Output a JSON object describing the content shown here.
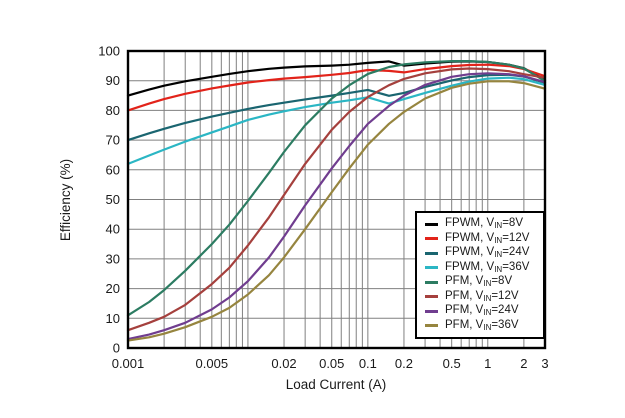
{
  "chart_data": {
    "type": "line",
    "title": "",
    "xlabel": "Load Current (A)",
    "ylabel": "Efficiency (%)",
    "x_scale": "log",
    "xlim": [
      0.001,
      3
    ],
    "ylim": [
      0,
      100
    ],
    "grid": "major and minor gridlines on, gray",
    "legend_position": "inside lower right",
    "frame_color": "#000000",
    "grid_color": "#808080",
    "x_ticks": [
      {
        "v": 0.001,
        "label": "0.001"
      },
      {
        "v": 0.005,
        "label": "0.005"
      },
      {
        "v": 0.02,
        "label": "0.02"
      },
      {
        "v": 0.05,
        "label": "0.05"
      },
      {
        "v": 0.1,
        "label": "0.1"
      },
      {
        "v": 0.2,
        "label": "0.2"
      },
      {
        "v": 0.5,
        "label": "0.5"
      },
      {
        "v": 1,
        "label": "1"
      },
      {
        "v": 2,
        "label": "2"
      },
      {
        "v": 3,
        "label": "3"
      }
    ],
    "y_ticks": [
      {
        "v": 0,
        "label": "0"
      },
      {
        "v": 10,
        "label": "10"
      },
      {
        "v": 20,
        "label": "20"
      },
      {
        "v": 30,
        "label": "30"
      },
      {
        "v": 40,
        "label": "40"
      },
      {
        "v": 50,
        "label": "50"
      },
      {
        "v": 60,
        "label": "60"
      },
      {
        "v": 70,
        "label": "70"
      },
      {
        "v": 80,
        "label": "80"
      },
      {
        "v": 90,
        "label": "90"
      },
      {
        "v": 100,
        "label": "100"
      }
    ],
    "x": [
      0.001,
      0.0015,
      0.002,
      0.003,
      0.005,
      0.007,
      0.01,
      0.015,
      0.02,
      0.03,
      0.05,
      0.07,
      0.1,
      0.15,
      0.2,
      0.3,
      0.5,
      0.7,
      1,
      1.5,
      2,
      3
    ],
    "series": [
      {
        "key": "fpwm-8v",
        "name": "FPWM, VIN=8V",
        "label_main": "FPWM, V",
        "label_sub": "IN",
        "label_end": "=8V",
        "color": "#000000",
        "values": [
          85,
          87,
          88.3,
          89.8,
          91.3,
          92.3,
          93.2,
          94,
          94.4,
          94.8,
          95.1,
          95.4,
          96,
          96.5,
          95.1,
          95.8,
          96.4,
          96.5,
          96.3,
          95.4,
          94.2,
          90.2
        ]
      },
      {
        "key": "fpwm-12v",
        "name": "FPWM, VIN=12V",
        "label_main": "FPWM, V",
        "label_sub": "IN",
        "label_end": "=12V",
        "color": "#e2231a",
        "values": [
          80,
          82.3,
          83.8,
          85.6,
          87.4,
          88.4,
          89.4,
          90.2,
          90.7,
          91.2,
          92,
          92.6,
          93.6,
          93.3,
          92.8,
          93.9,
          94.9,
          95.3,
          95.4,
          94.9,
          93.9,
          91.5
        ]
      },
      {
        "key": "fpwm-24v",
        "name": "FPWM, VIN=24V",
        "label_main": "FPWM, V",
        "label_sub": "IN",
        "label_end": "=24V",
        "color": "#1a6570",
        "values": [
          70,
          72.3,
          73.8,
          75.8,
          77.9,
          79.2,
          80.5,
          81.8,
          82.6,
          83.7,
          85,
          85.9,
          86.9,
          84.9,
          85.9,
          87.9,
          90.1,
          91.2,
          91.9,
          92,
          91.4,
          89.3
        ]
      },
      {
        "key": "fpwm-36v",
        "name": "FPWM, VIN=36V",
        "label_main": "FPWM, V",
        "label_sub": "IN",
        "label_end": "=36V",
        "color": "#2bb6c4",
        "values": [
          62,
          64.8,
          66.8,
          69.5,
          72.6,
          74.6,
          76.8,
          78.6,
          79.7,
          81.1,
          82.6,
          83.4,
          84.4,
          82.3,
          83.8,
          85.9,
          88.3,
          89.7,
          90.7,
          91,
          90.5,
          88.6
        ]
      },
      {
        "key": "pfm-8v",
        "name": "PFM, VIN=8V",
        "label_main": "PFM, V",
        "label_sub": "IN",
        "label_end": "=8V",
        "color": "#2c7c62",
        "values": [
          11,
          15.5,
          19.5,
          26,
          35,
          41.5,
          49.5,
          59,
          66,
          75,
          84,
          88.5,
          92.3,
          94.6,
          95.5,
          96.2,
          96.6,
          96.6,
          96.3,
          95.4,
          94.1,
          89.9
        ]
      },
      {
        "key": "pfm-12v",
        "name": "PFM, VIN=12V",
        "label_main": "PFM, V",
        "label_sub": "IN",
        "label_end": "=12V",
        "color": "#a5403d",
        "values": [
          6,
          8.5,
          10.5,
          14.5,
          21.5,
          27,
          34.5,
          44,
          51.5,
          62,
          73.5,
          79.5,
          84.5,
          88.5,
          90.6,
          92.5,
          93.8,
          94.1,
          93.9,
          93.2,
          92.2,
          91
        ]
      },
      {
        "key": "pfm-24v",
        "name": "PFM, VIN=24V",
        "label_main": "PFM, V",
        "label_sub": "IN",
        "label_end": "=24V",
        "color": "#703d8f",
        "values": [
          3,
          4.5,
          6,
          8.5,
          13,
          17,
          22.5,
          30.5,
          37.5,
          48,
          60.5,
          68,
          75.5,
          81.5,
          85,
          88.6,
          91.3,
          92.2,
          92.5,
          92.2,
          91.5,
          89.5
        ]
      },
      {
        "key": "pfm-36v",
        "name": "PFM, VIN=36V",
        "label_main": "PFM, V",
        "label_sub": "IN",
        "label_end": "=36V",
        "color": "#96853f",
        "values": [
          2.5,
          3.6,
          4.8,
          7,
          10.5,
          13.5,
          18,
          24.5,
          30.5,
          40,
          52.5,
          60.5,
          68.5,
          75.5,
          79.5,
          84,
          87.6,
          89,
          89.8,
          89.8,
          89.2,
          87.3
        ]
      }
    ]
  }
}
